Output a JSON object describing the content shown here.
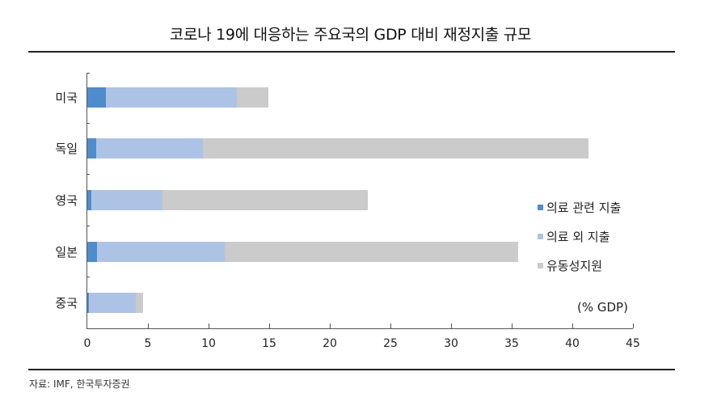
{
  "title": "코로나 19에 대응하는 주요국의 GDP 대비 재정지출 규모",
  "source": "자료: IMF, 한국투자증권",
  "unit_label": "(% GDP)",
  "colors": {
    "medical": "#4f8ccb",
    "non_medical": "#adc3e5",
    "liquidity": "#cbcbcb"
  },
  "legend": [
    {
      "label": "의료 관련 지출",
      "color": "#4f8ccb"
    },
    {
      "label": "의료 외 지출",
      "color": "#adc3e5"
    },
    {
      "label": "유동성지원",
      "color": "#cbcbcb"
    }
  ],
  "x_ticks": [
    "0",
    "5",
    "10",
    "15",
    "20",
    "25",
    "30",
    "35",
    "40",
    "45"
  ],
  "chart_data": {
    "type": "bar",
    "orientation": "horizontal",
    "stacked": true,
    "title": "코로나 19에 대응하는 주요국의 GDP 대비 재정지출 규모",
    "xlabel": "(% GDP)",
    "ylabel": "",
    "xlim": [
      0,
      45
    ],
    "x_ticks": [
      0,
      5,
      10,
      15,
      20,
      25,
      30,
      35,
      40,
      45
    ],
    "grid": false,
    "legend_position": "right",
    "categories": [
      "미국",
      "독일",
      "영국",
      "일본",
      "중국"
    ],
    "series": [
      {
        "name": "의료 관련 지출",
        "values": [
          1.5,
          0.7,
          0.3,
          0.8,
          0.1
        ]
      },
      {
        "name": "의료 외 지출",
        "values": [
          10.8,
          8.8,
          5.9,
          10.5,
          3.9
        ]
      },
      {
        "name": "유동성지원",
        "values": [
          2.6,
          31.8,
          16.9,
          24.2,
          0.6
        ]
      }
    ],
    "source": "자료: IMF, 한국투자증권"
  }
}
